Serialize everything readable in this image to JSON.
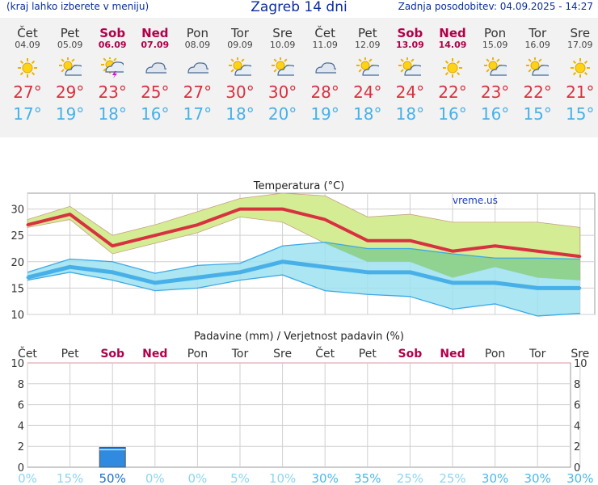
{
  "header": {
    "left_note": "(kraj lahko izberete v meniju)",
    "title": "Zagreb 14 dni",
    "updated": "Zadnja posodobitev: 04.09.2025 - 14:27"
  },
  "days": [
    {
      "name": "Čet",
      "date": "04.09",
      "weekend": false,
      "icon": "sun-icon",
      "tmax": "27",
      "tmin": "17"
    },
    {
      "name": "Pet",
      "date": "05.09",
      "weekend": false,
      "icon": "partly-cloudy-icon",
      "tmax": "29",
      "tmin": "19"
    },
    {
      "name": "Sob",
      "date": "06.09",
      "weekend": true,
      "icon": "thunderstorm-icon",
      "tmax": "23",
      "tmin": "18"
    },
    {
      "name": "Ned",
      "date": "07.09",
      "weekend": true,
      "icon": "cloudy-icon",
      "tmax": "25",
      "tmin": "16"
    },
    {
      "name": "Pon",
      "date": "08.09",
      "weekend": false,
      "icon": "cloudy-icon",
      "tmax": "27",
      "tmin": "17"
    },
    {
      "name": "Tor",
      "date": "09.09",
      "weekend": false,
      "icon": "partly-cloudy-icon",
      "tmax": "30",
      "tmin": "18"
    },
    {
      "name": "Sre",
      "date": "10.09",
      "weekend": false,
      "icon": "partly-cloudy-icon",
      "tmax": "30",
      "tmin": "20"
    },
    {
      "name": "Čet",
      "date": "11.09",
      "weekend": false,
      "icon": "cloudy-icon",
      "tmax": "28",
      "tmin": "19"
    },
    {
      "name": "Pet",
      "date": "12.09",
      "weekend": false,
      "icon": "partly-cloudy-icon",
      "tmax": "24",
      "tmin": "18"
    },
    {
      "name": "Sob",
      "date": "13.09",
      "weekend": true,
      "icon": "partly-cloudy-icon",
      "tmax": "24",
      "tmin": "18"
    },
    {
      "name": "Ned",
      "date": "14.09",
      "weekend": true,
      "icon": "sun-icon",
      "tmax": "22",
      "tmin": "16"
    },
    {
      "name": "Pon",
      "date": "15.09",
      "weekend": false,
      "icon": "partly-cloudy-icon",
      "tmax": "23",
      "tmin": "16"
    },
    {
      "name": "Tor",
      "date": "16.09",
      "weekend": false,
      "icon": "partly-cloudy-icon",
      "tmax": "22",
      "tmin": "15"
    },
    {
      "name": "Sre",
      "date": "17.09",
      "weekend": false,
      "icon": "sun-icon",
      "tmax": "21",
      "tmin": "15"
    }
  ],
  "colors": {
    "tmax": "#d8313f",
    "tmin": "#48b0e8",
    "weekend": "#b0004a",
    "precip": "#2f8ae0",
    "band_max": "#d4ec94",
    "band_min": "#9ce2f0",
    "band_overlap": "#8ecf86"
  },
  "chart_data": [
    {
      "type": "line",
      "title": "Temperatura (°C)",
      "watermark": "vreme.us",
      "x": [
        "Čet",
        "Pet",
        "Sob",
        "Ned",
        "Pon",
        "Tor",
        "Sre",
        "Čet",
        "Pet",
        "Sob",
        "Ned",
        "Pon",
        "Tor",
        "Sre"
      ],
      "ylim": [
        10,
        33
      ],
      "yticks": [
        10,
        15,
        20,
        25,
        30
      ],
      "grid": true,
      "series": [
        {
          "role": "max",
          "values": [
            27,
            29,
            23,
            25,
            27,
            30,
            30,
            28,
            24,
            24,
            22,
            23,
            22,
            21
          ],
          "upper": [
            28,
            30.5,
            25,
            27,
            29.5,
            32,
            33,
            32.5,
            28.5,
            29,
            27.5,
            27.5,
            27.5,
            26.5
          ],
          "lower": [
            26.5,
            28,
            21.5,
            23.5,
            25.5,
            28.5,
            27.5,
            23.5,
            20,
            20,
            17,
            19,
            17,
            16.5
          ]
        },
        {
          "role": "min",
          "values": [
            17,
            19,
            18,
            16,
            17,
            18,
            20,
            19,
            18,
            18,
            16,
            16,
            15,
            15
          ],
          "upper": [
            18,
            20.5,
            20,
            17.8,
            19.3,
            19.7,
            23,
            23.7,
            22.5,
            22.5,
            21.5,
            20.7,
            20.7,
            20.5
          ],
          "lower": [
            16.5,
            18,
            16.5,
            14.5,
            15,
            16.5,
            17.5,
            14.5,
            13.8,
            13.4,
            11,
            12,
            9.7,
            10.2
          ]
        }
      ]
    },
    {
      "type": "bar",
      "title": "Padavine (mm) / Verjetnost padavin (%)",
      "categories": [
        "Čet",
        "Pet",
        "Sob",
        "Ned",
        "Pon",
        "Tor",
        "Sre",
        "Čet",
        "Pet",
        "Sob",
        "Ned",
        "Pon",
        "Tor",
        "Sre"
      ],
      "values": [
        0,
        0,
        1.9,
        0,
        0,
        0,
        0,
        0,
        0,
        0,
        0,
        0,
        0,
        0
      ],
      "probability": [
        "0%",
        "15%",
        "50%",
        "0%",
        "0%",
        "5%",
        "10%",
        "30%",
        "35%",
        "25%",
        "25%",
        "30%",
        "30%",
        "30%"
      ],
      "ylim": [
        0,
        10
      ],
      "yticks": [
        0,
        2,
        4,
        6,
        8,
        10
      ]
    }
  ]
}
